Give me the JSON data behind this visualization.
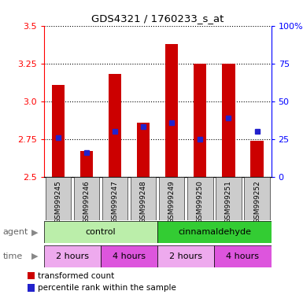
{
  "title": "GDS4321 / 1760233_s_at",
  "samples": [
    "GSM999245",
    "GSM999246",
    "GSM999247",
    "GSM999248",
    "GSM999249",
    "GSM999250",
    "GSM999251",
    "GSM999252"
  ],
  "red_values": [
    3.11,
    2.67,
    3.18,
    2.86,
    3.38,
    3.25,
    3.25,
    2.74
  ],
  "blue_values": [
    2.76,
    2.66,
    2.8,
    2.83,
    2.86,
    2.75,
    2.89,
    2.8
  ],
  "ymin": 2.5,
  "ymax": 3.5,
  "yticks_red": [
    2.5,
    2.75,
    3.0,
    3.25,
    3.5
  ],
  "yticks_blue_vals": [
    0,
    25,
    50,
    75,
    100
  ],
  "bar_color": "#cc0000",
  "dot_color": "#2222cc",
  "agent_row": [
    {
      "label": "control",
      "start": 0,
      "end": 4,
      "color": "#bbeeaa"
    },
    {
      "label": "cinnamaldehyde",
      "start": 4,
      "end": 8,
      "color": "#33cc33"
    }
  ],
  "time_row": [
    {
      "label": "2 hours",
      "start": 0,
      "end": 2,
      "color": "#eeaaee"
    },
    {
      "label": "4 hours",
      "start": 2,
      "end": 4,
      "color": "#dd55dd"
    },
    {
      "label": "2 hours",
      "start": 4,
      "end": 6,
      "color": "#eeaaee"
    },
    {
      "label": "4 hours",
      "start": 6,
      "end": 8,
      "color": "#dd55dd"
    }
  ],
  "legend_red": "transformed count",
  "legend_blue": "percentile rank within the sample",
  "row_label_agent": "agent",
  "row_label_time": "time",
  "sample_bg_color": "#cccccc"
}
